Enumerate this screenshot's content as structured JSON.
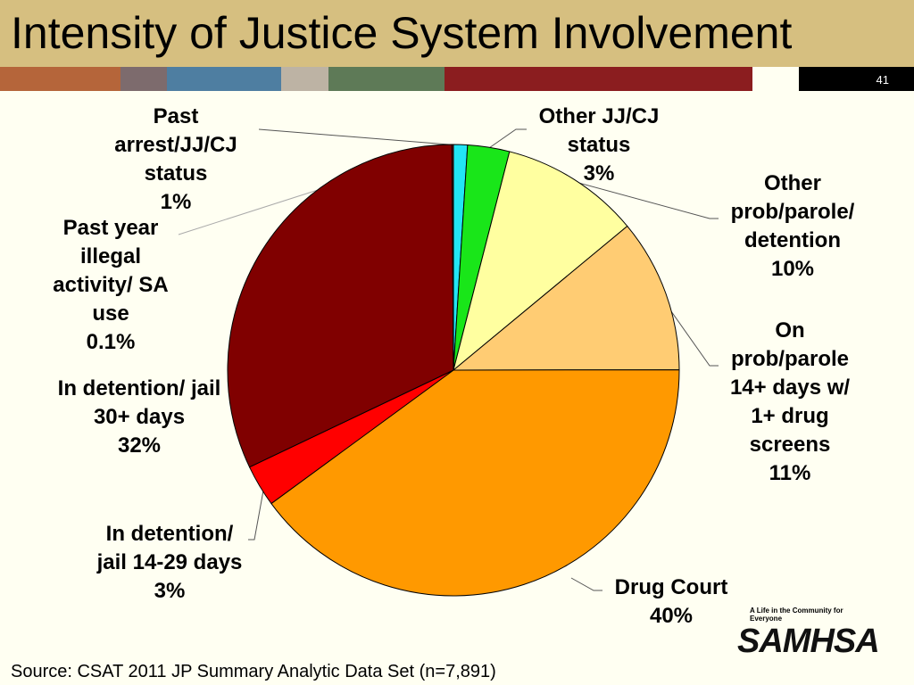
{
  "chart_data": {
    "type": "pie",
    "title": "Intensity of Justice System Involvement",
    "categories": [
      "Past arrest/JJ/CJ status",
      "Other JJ/CJ status",
      "Other prob/parole/ detention",
      "On prob/parole 14+ days w/ 1+ drug screens",
      "Drug Court",
      "In detention/ jail 14-29 days",
      "In detention/ jail 30+ days",
      "Past year illegal activity/ SA use"
    ],
    "values": [
      1,
      3,
      10,
      11,
      40,
      3,
      32,
      0.1
    ],
    "value_labels": [
      "1%",
      "3%",
      "10%",
      "11%",
      "40%",
      "3%",
      "32%",
      "0.1%"
    ],
    "colors": [
      "#22e5f5",
      "#19e619",
      "#ffffa0",
      "#ffcc73",
      "#ff9900",
      "#ff0000",
      "#800000",
      "#a00000"
    ],
    "source": "Source: CSAT 2011 JP Summary Analytic Data Set (n=7,891)"
  },
  "slide_number": "41",
  "logo": {
    "tagline": "A Life in the Community for Everyone",
    "name": "SAMHSA"
  }
}
